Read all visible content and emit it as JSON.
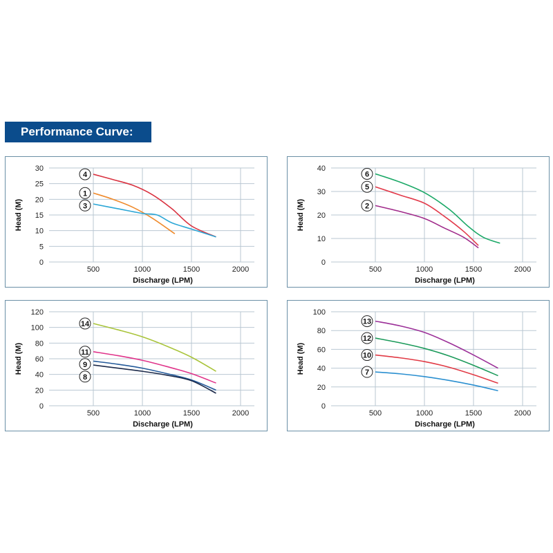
{
  "header": {
    "title": "Performance Curve:"
  },
  "colors": {
    "header_bg": "#0b4c8c",
    "panel_border": "#6a8fa6",
    "grid": "#b9c7d2"
  },
  "chart_data": [
    {
      "type": "line",
      "xlabel": "Discharge (LPM)",
      "ylabel": "Head (M)",
      "xlim": [
        0,
        2000
      ],
      "ylim": [
        0,
        30
      ],
      "xticks": [
        500,
        1000,
        1500,
        2000
      ],
      "yticks": [
        0,
        5,
        10,
        15,
        20,
        25,
        30
      ],
      "grid": true,
      "series": [
        {
          "name": "4",
          "color": "#d9313f",
          "x": [
            500,
            700,
            900,
            1100,
            1300,
            1500,
            1750
          ],
          "y": [
            28,
            26.3,
            24.5,
            21.5,
            17,
            11.5,
            8
          ]
        },
        {
          "name": "1",
          "color": "#ef8a2c",
          "x": [
            500,
            700,
            900,
            1100,
            1330
          ],
          "y": [
            22,
            20,
            17.5,
            14,
            9
          ]
        },
        {
          "name": "3",
          "color": "#2aa6d6",
          "x": [
            500,
            750,
            1000,
            1150,
            1300,
            1500,
            1750
          ],
          "y": [
            18.5,
            17,
            15.5,
            15,
            12.5,
            10.5,
            8
          ]
        }
      ]
    },
    {
      "type": "line",
      "xlabel": "Discharge (LPM)",
      "ylabel": "Head (M)",
      "xlim": [
        0,
        2000
      ],
      "ylim": [
        0,
        40
      ],
      "xticks": [
        500,
        1000,
        1500,
        2000
      ],
      "yticks": [
        0,
        10,
        20,
        30,
        40
      ],
      "grid": true,
      "series": [
        {
          "name": "6",
          "color": "#1aa866",
          "x": [
            500,
            750,
            1000,
            1250,
            1450,
            1600,
            1770
          ],
          "y": [
            37.5,
            34,
            29.5,
            22.5,
            15,
            10.5,
            8
          ]
        },
        {
          "name": "5",
          "color": "#e23a4a",
          "x": [
            500,
            750,
            1000,
            1200,
            1400,
            1550
          ],
          "y": [
            32,
            28.5,
            25,
            19.5,
            13,
            7
          ]
        },
        {
          "name": "2",
          "color": "#a02a8a",
          "x": [
            500,
            750,
            1000,
            1200,
            1400,
            1550
          ],
          "y": [
            24,
            21.5,
            18.5,
            14.5,
            10.5,
            6
          ]
        }
      ]
    },
    {
      "type": "line",
      "xlabel": "Discharge (LPM)",
      "ylabel": "Head (M)",
      "xlim": [
        0,
        2000
      ],
      "ylim": [
        0,
        120
      ],
      "xticks": [
        500,
        1000,
        1500,
        2000
      ],
      "yticks": [
        0,
        20,
        40,
        60,
        80,
        100,
        120
      ],
      "grid": true,
      "series": [
        {
          "name": "14",
          "color": "#a9c43a",
          "x": [
            500,
            750,
            1000,
            1250,
            1500,
            1750
          ],
          "y": [
            105,
            97,
            88,
            76,
            62,
            44
          ]
        },
        {
          "name": "11",
          "color": "#e0338a",
          "x": [
            500,
            750,
            1000,
            1250,
            1500,
            1750
          ],
          "y": [
            69,
            64,
            58,
            50,
            41,
            29
          ]
        },
        {
          "name": "9",
          "color": "#245a9a",
          "x": [
            500,
            750,
            1000,
            1250,
            1500,
            1750
          ],
          "y": [
            57,
            53,
            48,
            41,
            33,
            20
          ]
        },
        {
          "name": "8",
          "color": "#1c2a4a",
          "x": [
            500,
            750,
            1000,
            1250,
            1500,
            1750
          ],
          "y": [
            52,
            48,
            44,
            39,
            32,
            16
          ]
        }
      ]
    },
    {
      "type": "line",
      "xlabel": "Discharge (LPM)",
      "ylabel": "Head (M)",
      "xlim": [
        0,
        2000
      ],
      "ylim": [
        0,
        100
      ],
      "xticks": [
        500,
        1000,
        1500,
        2000
      ],
      "yticks": [
        0,
        20,
        40,
        60,
        80,
        100
      ],
      "grid": true,
      "series": [
        {
          "name": "13",
          "color": "#9b2f98",
          "x": [
            500,
            750,
            1000,
            1250,
            1500,
            1750
          ],
          "y": [
            90,
            85,
            78,
            67,
            54,
            40
          ]
        },
        {
          "name": "12",
          "color": "#1b9a5a",
          "x": [
            500,
            750,
            1000,
            1250,
            1500,
            1750
          ],
          "y": [
            72,
            67,
            61,
            53,
            43,
            32
          ]
        },
        {
          "name": "10",
          "color": "#e13a45",
          "x": [
            500,
            750,
            1000,
            1250,
            1500,
            1750
          ],
          "y": [
            54,
            51,
            47,
            41,
            33,
            24
          ]
        },
        {
          "name": "7",
          "color": "#2a8fd0",
          "x": [
            500,
            750,
            1000,
            1250,
            1500,
            1750
          ],
          "y": [
            36,
            34,
            31,
            27,
            22,
            16
          ]
        }
      ]
    }
  ]
}
